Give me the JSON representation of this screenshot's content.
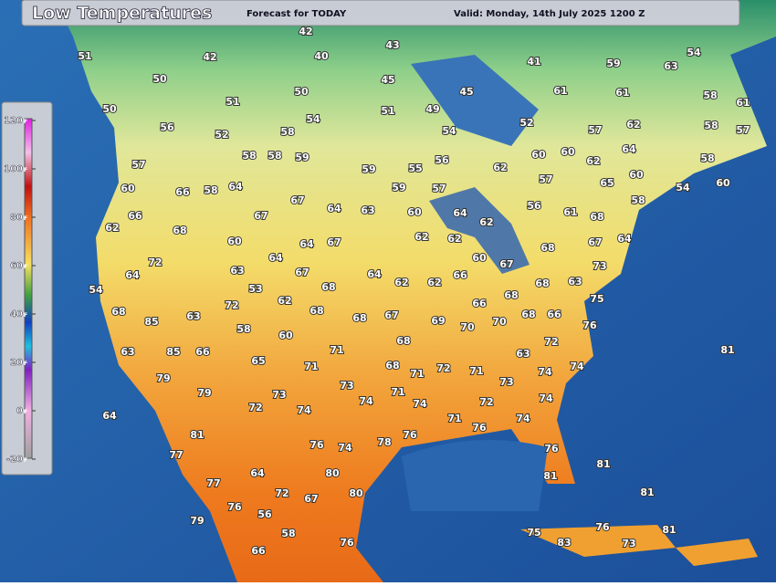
{
  "header": {
    "title": "Low Temperatures",
    "subtitle": "Forecast for TODAY",
    "valid": "Valid: Monday, 14th July 2025 1200 Z"
  },
  "legend": {
    "ticks": [
      120,
      100,
      80,
      60,
      40,
      20,
      0,
      -20
    ],
    "range": [
      -20,
      120
    ],
    "unit": "F"
  },
  "temperatures": [
    42,
    43,
    42,
    40,
    41,
    59,
    63,
    54,
    51,
    50,
    45,
    45,
    61,
    61,
    58,
    61,
    50,
    51,
    50,
    54,
    51,
    49,
    52,
    62,
    58,
    57,
    56,
    52,
    58,
    54,
    57,
    64,
    58,
    58,
    59,
    56,
    60,
    60,
    62,
    58,
    57,
    59,
    55,
    62,
    57,
    60,
    60,
    66,
    58,
    64,
    59,
    57,
    65,
    54,
    60,
    67,
    64,
    63,
    60,
    56,
    61,
    58,
    66,
    67,
    64,
    62,
    68,
    62,
    68,
    60,
    64,
    67,
    62,
    62,
    60,
    67,
    68,
    67,
    64,
    72,
    63,
    64,
    67,
    64,
    62,
    62,
    66,
    73,
    64,
    54,
    72,
    53,
    62,
    68,
    68,
    63,
    75,
    68,
    63,
    68,
    68,
    67,
    66,
    68,
    85,
    58,
    60,
    69,
    70,
    70,
    68,
    66,
    76,
    63,
    85,
    66,
    71,
    68,
    72,
    65,
    71,
    68,
    71,
    72,
    71,
    63,
    81,
    79,
    73,
    74,
    74,
    79,
    73,
    74,
    71,
    73,
    72,
    74,
    74,
    72,
    74,
    64,
    71,
    76,
    74,
    81,
    76,
    76,
    74,
    78,
    76,
    77,
    81,
    80,
    81,
    64,
    77,
    81,
    72,
    67,
    80,
    76,
    56,
    79,
    76,
    81,
    75,
    58,
    83,
    73,
    76,
    66
  ]
}
